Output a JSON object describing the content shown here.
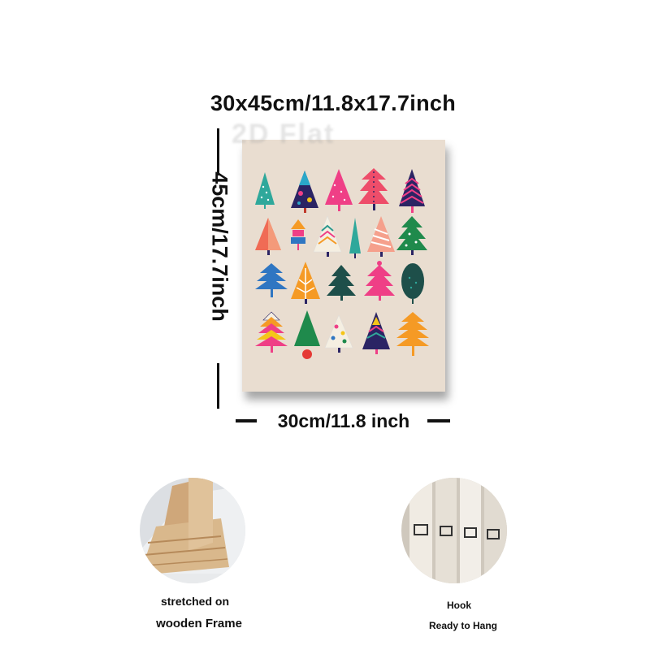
{
  "size_label": "30x45cm/11.8x17.7inch",
  "height_label": "45cm/17.7inch",
  "width_label": "30cm/11.8 inch",
  "watermark": "2D Flat",
  "left_feature": {
    "line1": "stretched on",
    "line2": "wooden Frame"
  },
  "right_feature": {
    "line1": "Hook",
    "line2": "Ready to Hang"
  },
  "colors": {
    "canvas": "#e9ddd0",
    "pink": "#ef3f86",
    "navy": "#2b2464",
    "teal": "#2f9a8f",
    "orange": "#f59a25",
    "blue": "#2f76c2",
    "green": "#1f8a4c",
    "coral": "#f06b55"
  }
}
